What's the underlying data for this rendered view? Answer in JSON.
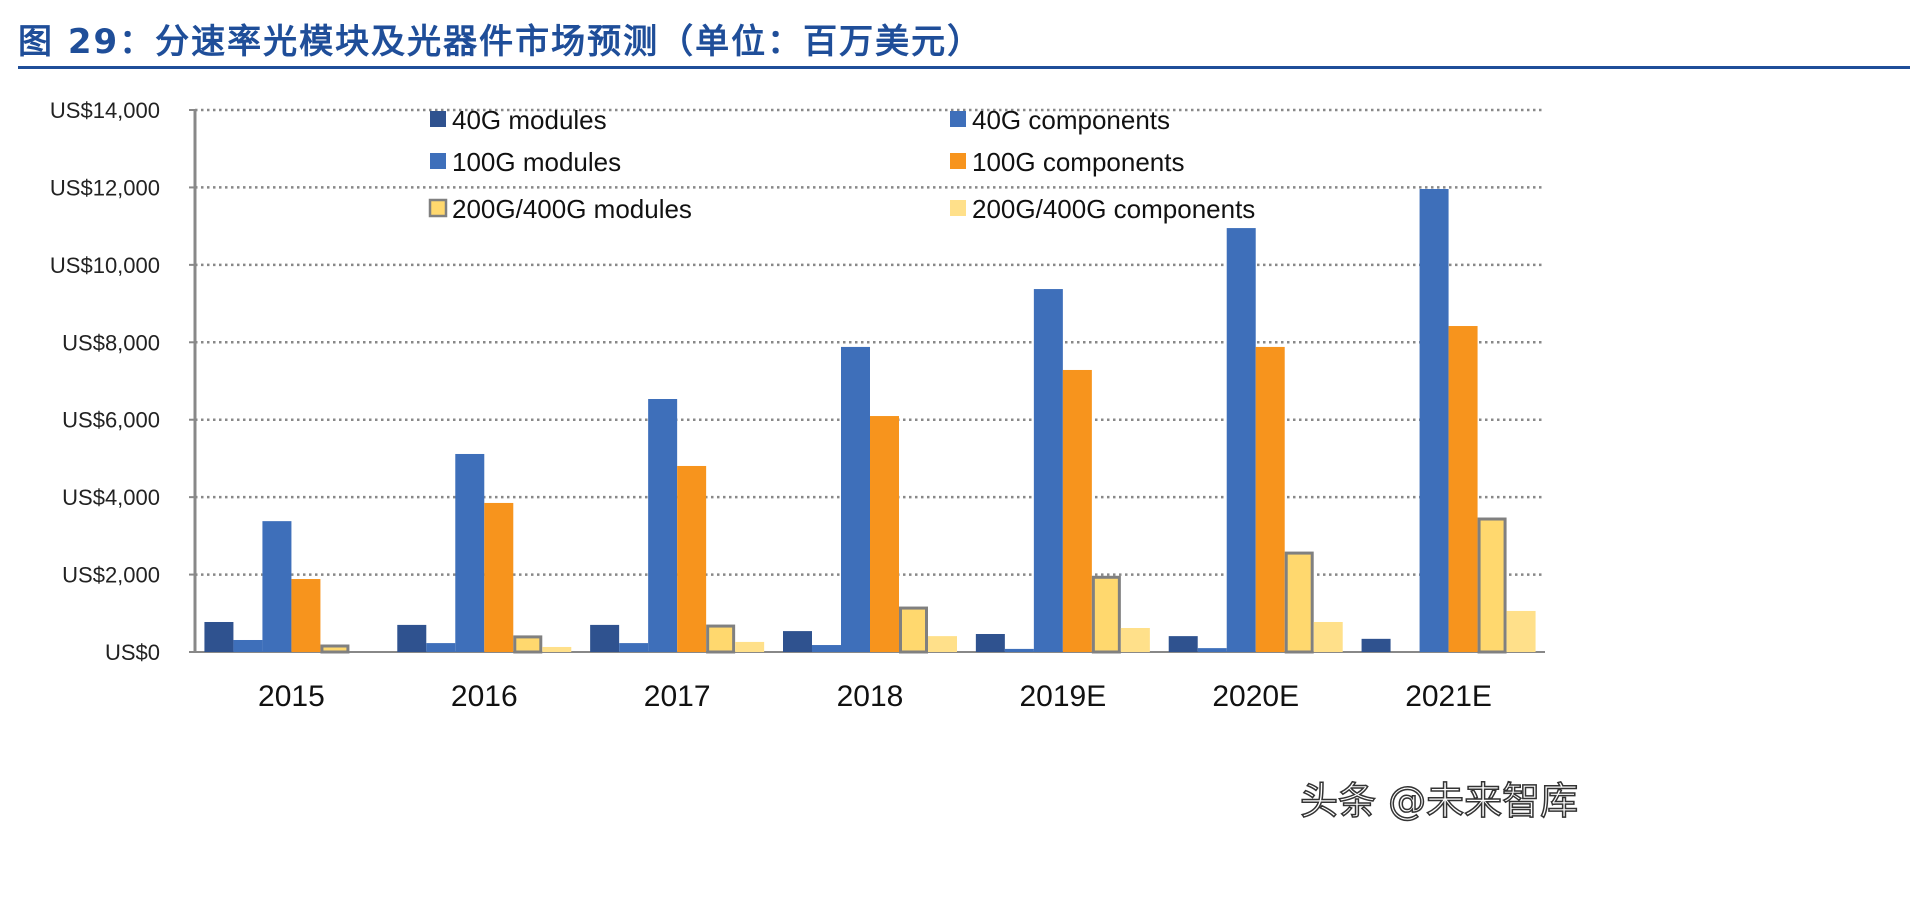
{
  "title": "图 29：分速率光模块及光器件市场预测（单位：百万美元）",
  "watermark": "头条 @未来智库",
  "chart_data": {
    "type": "bar",
    "title": "",
    "xlabel": "",
    "ylabel": "",
    "ylim": [
      0,
      14000
    ],
    "yticks": [
      0,
      2000,
      4000,
      6000,
      8000,
      10000,
      12000,
      14000
    ],
    "ytick_labels": [
      "US$0",
      "US$2,000",
      "US$4,000",
      "US$6,000",
      "US$8,000",
      "US$10,000",
      "US$12,000",
      "US$14,000"
    ],
    "grid": "horizontal dotted",
    "legend_placement": "top",
    "categories": [
      "2015",
      "2016",
      "2017",
      "2018",
      "2019E",
      "2020E",
      "2021E"
    ],
    "series": [
      {
        "name": "40G modules",
        "color": "#2f528f",
        "values": [
          775,
          700,
          700,
          540,
          465,
          410,
          340
        ]
      },
      {
        "name": "40G components",
        "color": "#3e6fba",
        "values": [
          310,
          230,
          230,
          180,
          80,
          100,
          0
        ]
      },
      {
        "name": "100G modules",
        "color": "#3e6fba",
        "values": [
          3380,
          5115,
          6535,
          7880,
          9375,
          10950,
          11960
        ]
      },
      {
        "name": "100G components",
        "color": "#f7941d",
        "values": [
          1885,
          3850,
          4805,
          6095,
          7285,
          7880,
          8420
        ]
      },
      {
        "name": "200G/400G modules",
        "color": "#ffd86e",
        "border": "#808080",
        "values": [
          155,
          390,
          670,
          1135,
          1930,
          2555,
          3435
        ]
      },
      {
        "name": "200G/400G components",
        "color": "#ffe08a",
        "values": [
          0,
          130,
          260,
          410,
          620,
          775,
          1060
        ]
      }
    ]
  }
}
